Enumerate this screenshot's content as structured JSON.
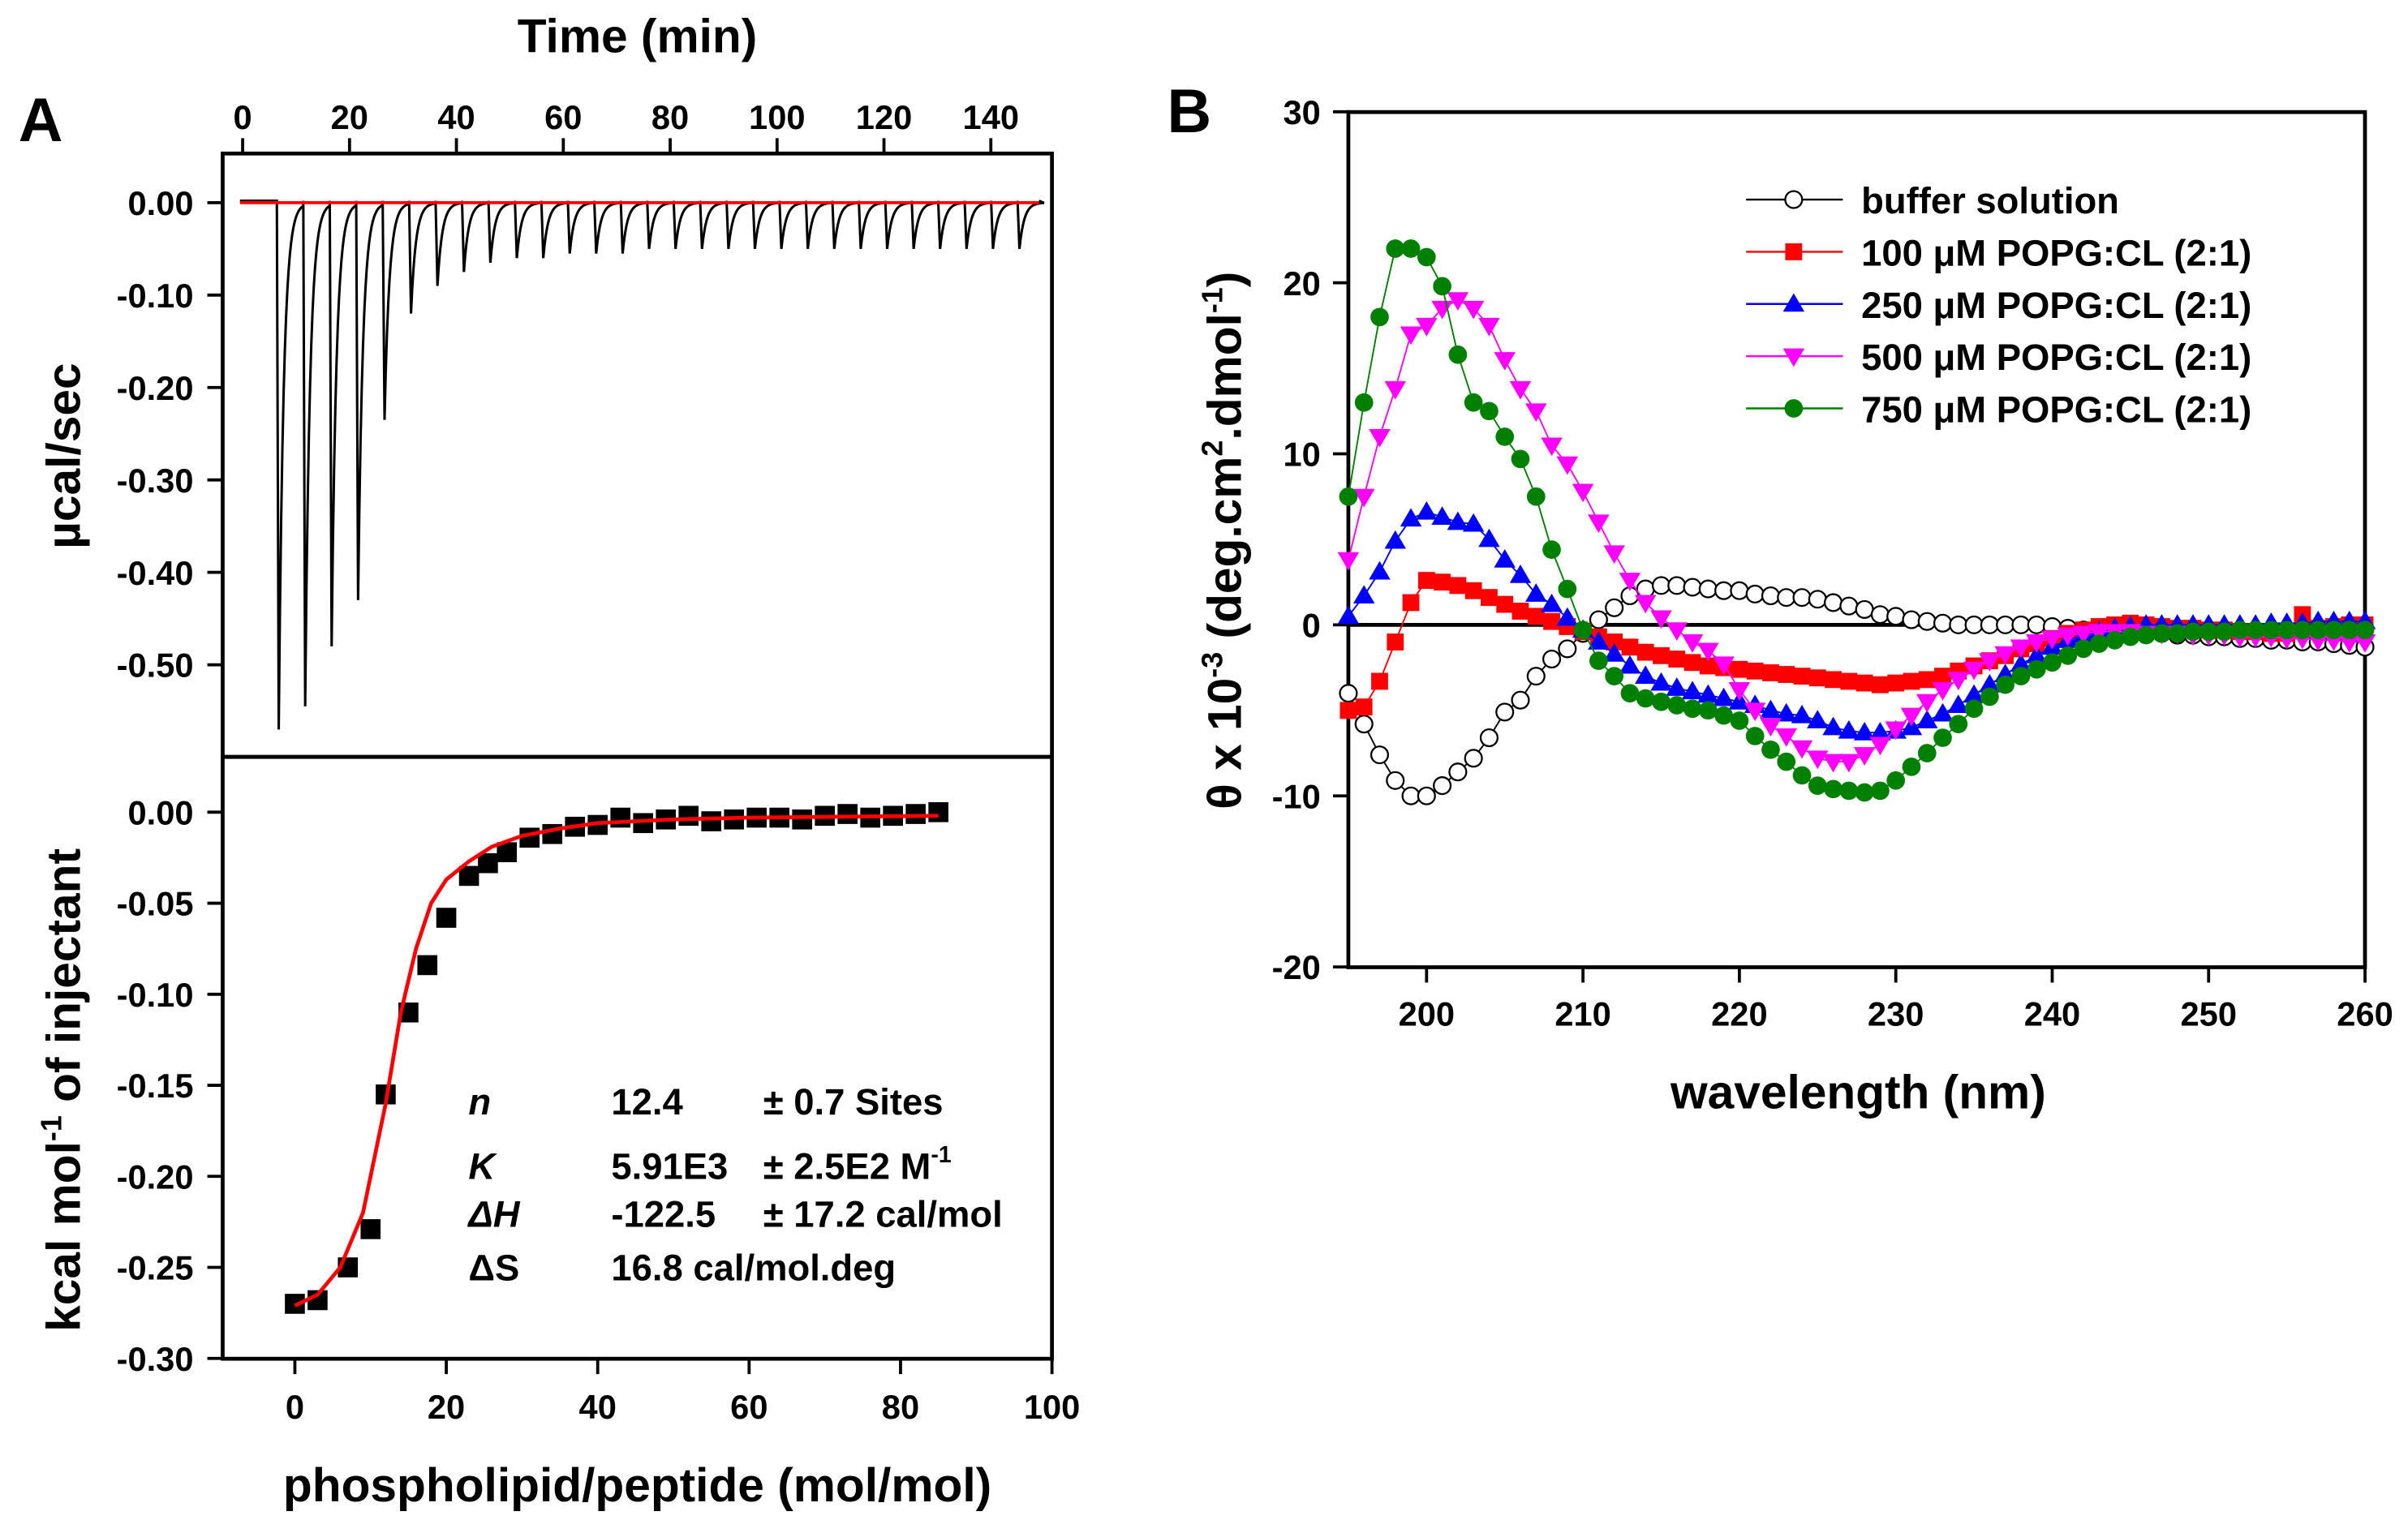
{
  "panels": {
    "a": "A",
    "b": "B"
  },
  "chart_data": [
    {
      "type": "line",
      "panel": "A (top)",
      "xlabel": "Time (min)",
      "ylabel": "µcal/sec",
      "xlim": [
        -9.5,
        151
      ],
      "ylim": [
        -0.6,
        0.05
      ],
      "xticks": [
        0,
        20,
        40,
        60,
        80,
        100,
        120,
        140
      ],
      "yticks": [
        "0.00",
        "-0.10",
        "-0.20",
        "-0.30",
        "-0.40",
        "-0.50"
      ],
      "ytick_values": [
        0,
        -0.1,
        -0.2,
        -0.3,
        -0.4,
        -0.5
      ],
      "injection_start_min": 6.6,
      "injection_interval_min": 4.95,
      "peak_minima": [
        -0.57,
        -0.545,
        -0.48,
        -0.43,
        -0.235,
        -0.12,
        -0.09,
        -0.075,
        -0.065,
        -0.06,
        -0.06,
        -0.055,
        -0.055,
        -0.055,
        -0.05,
        -0.05,
        -0.05,
        -0.05,
        -0.05,
        -0.05,
        -0.05,
        -0.05,
        -0.05,
        -0.05,
        -0.05,
        -0.05,
        -0.05,
        -0.05,
        -0.05
      ],
      "baseline": 0,
      "colors": {
        "trace": "#000000",
        "baseline": "#ff0000"
      }
    },
    {
      "type": "scatter",
      "panel": "A (bottom)",
      "xlabel": "phospholipid/peptide (mol/mol)",
      "ylabel": {
        "main": "kcal mol",
        "sup": "-1",
        "rest": " of injectant"
      },
      "xlim": [
        -9.5,
        100
      ],
      "ylim": [
        -0.3,
        0.03
      ],
      "xticks": [
        0,
        20,
        40,
        60,
        80,
        100
      ],
      "yticks": [
        "0.00",
        "-0.05",
        "-0.10",
        "-0.15",
        "-0.20",
        "-0.25",
        "-0.30"
      ],
      "ytick_values": [
        0,
        -0.05,
        -0.1,
        -0.15,
        -0.2,
        -0.25,
        -0.3
      ],
      "points": {
        "x": [
          0,
          3,
          7,
          10,
          12,
          15,
          17.5,
          20,
          23,
          25.5,
          28,
          31,
          34,
          37,
          40,
          43,
          46,
          49,
          52,
          55,
          58,
          61,
          64,
          67,
          70,
          73,
          76,
          79,
          82,
          85
        ],
        "y": [
          -0.27,
          -0.268,
          -0.25,
          -0.229,
          -0.155,
          -0.11,
          -0.084,
          -0.058,
          -0.035,
          -0.028,
          -0.022,
          -0.014,
          -0.012,
          -0.008,
          -0.007,
          -0.003,
          -0.006,
          -0.004,
          -0.002,
          -0.005,
          -0.004,
          -0.003,
          -0.003,
          -0.004,
          -0.002,
          -0.001,
          -0.003,
          -0.002,
          -0.001,
          0.0
        ]
      },
      "fit": {
        "x": [
          0,
          3,
          6,
          9,
          12,
          14,
          16,
          18,
          20,
          23,
          26,
          30,
          35,
          40,
          50,
          60,
          85
        ],
        "y": [
          -0.271,
          -0.265,
          -0.25,
          -0.22,
          -0.16,
          -0.11,
          -0.075,
          -0.05,
          -0.037,
          -0.027,
          -0.019,
          -0.013,
          -0.009,
          -0.006,
          -0.004,
          -0.003,
          -0.002
        ]
      },
      "annotations": [
        [
          "n",
          "12.4",
          "± 0.7 Sites"
        ],
        [
          "K",
          "5.91E3",
          "± 2.5E2 M",
          "-1"
        ],
        [
          "ΔH",
          "-122.5",
          "± 17.2 cal/mol"
        ],
        [
          "ΔS",
          "16.8 cal/mol.deg",
          ""
        ]
      ],
      "colors": {
        "points": "#000000",
        "fit": "#ff0000"
      }
    },
    {
      "type": "line",
      "panel": "B",
      "xlabel": "wavelength (nm)",
      "ylabel": {
        "pre": "θ x 10",
        "sup1": "-3",
        "mid": " (deg.cm",
        "sup2": "2",
        "mid2": ".dmol",
        "sup3": "-1",
        "end": ")"
      },
      "xlim": [
        195,
        260
      ],
      "ylim": [
        -20,
        30
      ],
      "xticks": [
        200,
        210,
        220,
        230,
        240,
        250,
        260
      ],
      "yticks": [
        30,
        20,
        10,
        0,
        -10,
        -20
      ],
      "legend": "top-right",
      "x_start": 195,
      "x_step": 1,
      "series": [
        {
          "name": "buffer solution",
          "marker": "circle-open",
          "color": "#000000",
          "values": [
            -4,
            -5.8,
            -7.6,
            -9.1,
            -10,
            -10,
            -9.4,
            -8.6,
            -7.8,
            -6.6,
            -5.1,
            -4.4,
            -3,
            -2,
            -1.4,
            -0.5,
            0.3,
            1,
            1.7,
            2.1,
            2.3,
            2.3,
            2.2,
            2.1,
            2,
            2,
            1.8,
            1.7,
            1.6,
            1.6,
            1.5,
            1.3,
            1.1,
            0.9,
            0.6,
            0.5,
            0.3,
            0.2,
            0.1,
            0,
            0,
            0,
            0,
            0,
            0,
            -0.1,
            -0.2,
            -0.3,
            -0.3,
            -0.4,
            -0.4,
            -0.5,
            -0.5,
            -0.6,
            -0.6,
            -0.7,
            -0.7,
            -0.8,
            -0.8,
            -0.9,
            -0.9,
            -1,
            -1,
            -1.1,
            -1.2,
            -1.3
          ]
        },
        {
          "name": "100 μM POPG:CL (2:1)",
          "marker": "square",
          "color": "#ff0000",
          "values": [
            -5,
            -4.8,
            -3.3,
            -1,
            1.3,
            2.6,
            2.5,
            2.3,
            2,
            1.6,
            1.2,
            0.8,
            0.5,
            0.2,
            -0.1,
            -0.4,
            -0.7,
            -1,
            -1.3,
            -1.6,
            -1.8,
            -2,
            -2.2,
            -2.4,
            -2.5,
            -2.6,
            -2.7,
            -2.8,
            -2.9,
            -3,
            -3.1,
            -3.2,
            -3.3,
            -3.4,
            -3.5,
            -3.4,
            -3.3,
            -3.2,
            -3,
            -2.7,
            -2.4,
            -2.1,
            -1.8,
            -1.4,
            -1.1,
            -0.8,
            -0.5,
            -0.3,
            -0.1,
            0,
            0.1,
            0,
            -0.1,
            -0.2,
            -0.2,
            -0.3,
            -0.3,
            -0.4,
            -0.4,
            -0.5,
            -0.5,
            0.6,
            -0.2,
            -0.1,
            0,
            0
          ]
        },
        {
          "name": "250 μM POPG:CL (2:1)",
          "marker": "triangle-up",
          "color": "#0000ff",
          "values": [
            0.5,
            1.7,
            3.1,
            4.9,
            6.2,
            6.6,
            6.3,
            6,
            5.9,
            5,
            3.8,
            2.9,
            1.8,
            1.2,
            0.4,
            -0.3,
            -1,
            -1.7,
            -2.4,
            -3,
            -3.4,
            -3.7,
            -3.9,
            -4.1,
            -4.3,
            -4.5,
            -4.7,
            -5,
            -5.2,
            -5.3,
            -5.6,
            -6,
            -6.2,
            -6.3,
            -6.3,
            -6.2,
            -6,
            -5.6,
            -5.2,
            -4.7,
            -4.1,
            -3.5,
            -2.9,
            -2.3,
            -1.8,
            -1.3,
            -0.9,
            -0.6,
            -0.4,
            -0.2,
            -0.1,
            0,
            0,
            0,
            0,
            0,
            0,
            0,
            0,
            0.1,
            0.1,
            0.1,
            0.2,
            0.2,
            0.2,
            0.2
          ]
        },
        {
          "name": "500 μM POPG:CL (2:1)",
          "marker": "triangle-down",
          "color": "#ff00ff",
          "values": [
            3.8,
            7.5,
            11,
            13.8,
            17,
            17.5,
            18.5,
            19,
            18.5,
            17.5,
            15.5,
            13.8,
            12.5,
            10.5,
            9.4,
            7.8,
            6,
            4.2,
            2.6,
            1.3,
            0.4,
            -0.3,
            -1,
            -1.5,
            -2.3,
            -3.8,
            -5,
            -5.9,
            -6.5,
            -7.2,
            -7.8,
            -8,
            -8,
            -7.6,
            -7,
            -6.1,
            -5.3,
            -4.5,
            -3.8,
            -3.2,
            -2.6,
            -2.1,
            -1.7,
            -1.3,
            -1,
            -0.8,
            -0.6,
            -0.5,
            -0.4,
            -0.4,
            -0.4,
            -0.5,
            -0.5,
            -0.5,
            -0.6,
            -0.6,
            -0.6,
            -0.7,
            -0.7,
            -0.7,
            -0.8,
            -0.8,
            -0.9,
            -0.9,
            -1,
            -1
          ]
        },
        {
          "name": "750 μM POPG:CL (2:1)",
          "marker": "circle",
          "color": "#008000",
          "values": [
            7.5,
            13,
            18,
            22,
            22,
            21.5,
            19.8,
            15.8,
            13,
            12.5,
            11,
            9.7,
            7.5,
            4.4,
            2.1,
            -0.3,
            -2.1,
            -3,
            -4,
            -4.3,
            -4.5,
            -4.7,
            -4.9,
            -5,
            -5.3,
            -5.6,
            -6.5,
            -7.3,
            -8,
            -8.8,
            -9.4,
            -9.6,
            -9.7,
            -9.8,
            -9.7,
            -9.1,
            -8.3,
            -7.5,
            -6.6,
            -5.8,
            -4.9,
            -4.2,
            -3.5,
            -3,
            -2.6,
            -2.2,
            -1.8,
            -1.4,
            -1.1,
            -0.9,
            -0.7,
            -0.6,
            -0.5,
            -0.5,
            -0.4,
            -0.4,
            -0.4,
            -0.3,
            -0.3,
            -0.3,
            -0.3,
            -0.3,
            -0.3,
            -0.3,
            -0.3,
            -0.3
          ]
        }
      ]
    }
  ]
}
